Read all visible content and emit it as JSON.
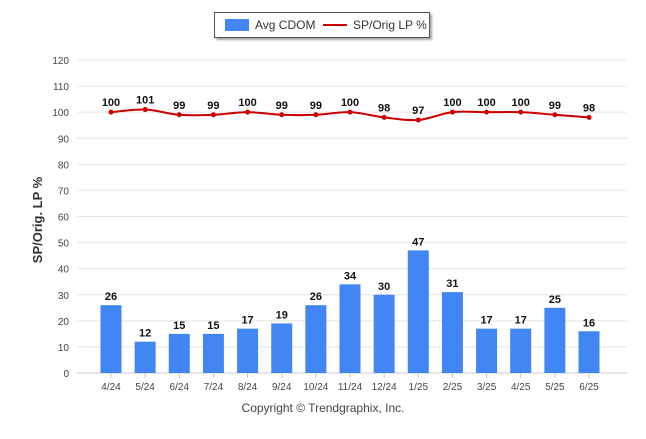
{
  "legend": {
    "bar_label": "Avg CDOM",
    "line_label": "SP/Orig LP %"
  },
  "footer": "Copyright © Trendgraphix, Inc.",
  "chart_data": {
    "type": "bar",
    "ylabel": "SP/Orig. LP %",
    "xlabel": "",
    "ylim": [
      0,
      120
    ],
    "yticks": [
      0,
      10,
      20,
      30,
      40,
      50,
      60,
      70,
      80,
      90,
      100,
      110,
      120
    ],
    "grid": true,
    "legend_position": "top-center",
    "categories": [
      "4/24",
      "5/24",
      "6/24",
      "7/24",
      "8/24",
      "9/24",
      "10/24",
      "11/24",
      "12/24",
      "1/25",
      "2/25",
      "3/25",
      "4/25",
      "5/25",
      "6/25"
    ],
    "series": [
      {
        "name": "Avg CDOM",
        "type": "bar",
        "color": "#4286f4",
        "values": [
          26,
          12,
          15,
          15,
          17,
          19,
          26,
          34,
          30,
          47,
          31,
          17,
          17,
          25,
          16
        ]
      },
      {
        "name": "SP/Orig LP %",
        "type": "line",
        "color": "#cc0000",
        "values": [
          100,
          101,
          99,
          99,
          100,
          99,
          99,
          100,
          98,
          97,
          100,
          100,
          100,
          99,
          98
        ]
      }
    ]
  }
}
